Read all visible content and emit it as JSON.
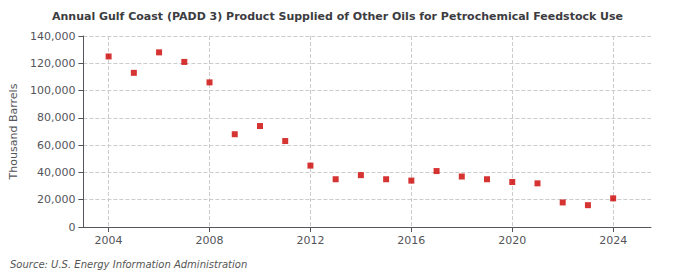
{
  "chart_data": {
    "type": "scatter",
    "title": "Annual Gulf Coast (PADD 3) Product Supplied of Other Oils for Petrochemical Feedstock Use",
    "ylabel": "Thousand Barrels",
    "source": "Source: U.S. Energy Information Administration",
    "x": [
      2004,
      2005,
      2006,
      2007,
      2008,
      2009,
      2010,
      2011,
      2012,
      2013,
      2014,
      2015,
      2016,
      2017,
      2018,
      2019,
      2020,
      2021,
      2022,
      2023,
      2024
    ],
    "values": [
      125000,
      113000,
      128000,
      121000,
      106000,
      68000,
      74000,
      63000,
      45000,
      35000,
      38000,
      35000,
      34000,
      41000,
      37000,
      35000,
      33000,
      32000,
      18000,
      16000,
      21000
    ],
    "color": "#cc0000",
    "marker": "square",
    "xlim": [
      2003,
      2025.5
    ],
    "xticks": [
      2004,
      2008,
      2012,
      2016,
      2020,
      2024
    ],
    "ylim": [
      0,
      140000
    ],
    "yticks": [
      0,
      {
        "value": 20000,
        "label": "20,000"
      },
      {
        "value": 40000,
        "label": "40,000"
      },
      {
        "value": 60000,
        "label": "60,000"
      },
      {
        "value": 80000,
        "label": "80,000"
      },
      {
        "value": 100000,
        "label": "100,000"
      },
      {
        "value": 120000,
        "label": "120,000"
      },
      {
        "value": 140000,
        "label": "140,000"
      }
    ],
    "grid": true
  }
}
